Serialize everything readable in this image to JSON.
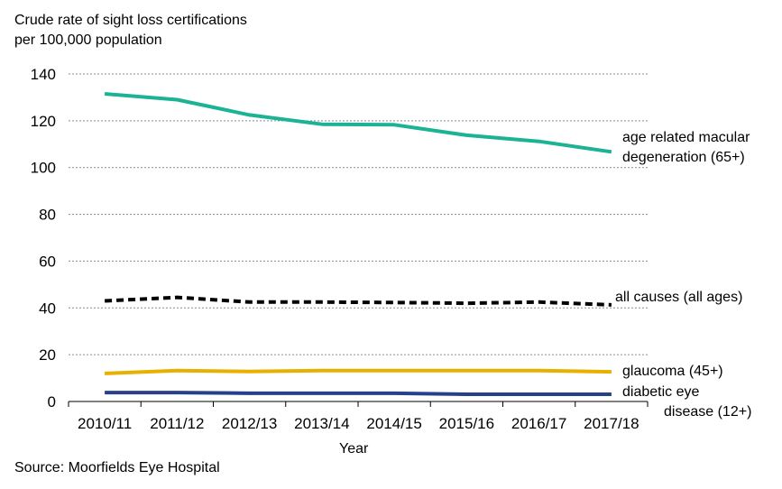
{
  "chart_data": {
    "type": "line",
    "ylabel_line1": "Crude rate of sight loss certifications",
    "ylabel_line2": "per 100,000 population",
    "xlabel": "Year",
    "source": "Source: Moorfields Eye Hospital",
    "categories": [
      "2010/11",
      "2011/12",
      "2012/13",
      "2013/14",
      "2014/15",
      "2015/16",
      "2016/17",
      "2017/18"
    ],
    "ylim": [
      0,
      140
    ],
    "yticks": [
      0,
      20,
      40,
      60,
      80,
      100,
      120,
      140
    ],
    "grid": true,
    "series": [
      {
        "name_line1": "age related macular",
        "name_line2": "degeneration (65+)",
        "color": "#1bb394",
        "style": "solid",
        "values": [
          131.5,
          129,
          122.5,
          118.5,
          118.3,
          113.8,
          111.2,
          106.7
        ]
      },
      {
        "name_line1": "all causes (all ages)",
        "name_line2": "",
        "color": "#000000",
        "style": "dashed",
        "values": [
          43,
          44.5,
          42.5,
          42.5,
          42.3,
          42,
          42.5,
          41.3
        ]
      },
      {
        "name_line1": "glaucoma (45+)",
        "name_line2": "",
        "color": "#e8b000",
        "style": "solid",
        "values": [
          12,
          13.2,
          12.8,
          13.2,
          13.2,
          13.2,
          13.2,
          12.7
        ]
      },
      {
        "name_line1": "diabetic eye",
        "name_line2": "disease (12+)",
        "color": "#27408b",
        "style": "solid",
        "values": [
          3.8,
          3.8,
          3.5,
          3.5,
          3.5,
          3.1,
          3.1,
          3.1
        ]
      }
    ]
  }
}
